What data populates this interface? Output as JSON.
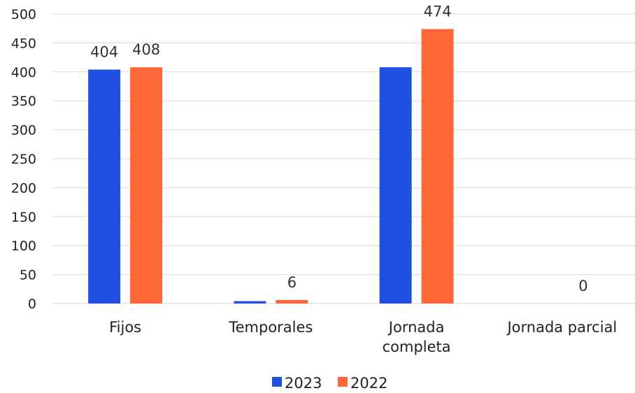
{
  "chart_data": {
    "type": "bar",
    "categories": [
      [
        "Fijos"
      ],
      [
        "Temporales"
      ],
      [
        "Jornada",
        "completa"
      ],
      [
        "Jornada parcial"
      ]
    ],
    "series": [
      {
        "name": "2023",
        "color": "#1f4ee0",
        "values": [
          404,
          4,
          408,
          0
        ],
        "labels": [
          "404",
          "",
          "",
          ""
        ]
      },
      {
        "name": "2022",
        "color": "#ff6638",
        "values": [
          408,
          6,
          474,
          0
        ],
        "labels": [
          "408",
          "6",
          "474",
          "0"
        ]
      }
    ],
    "ylim": [
      0,
      500
    ],
    "yticks": [
      0,
      50,
      100,
      150,
      200,
      250,
      300,
      350,
      400,
      450,
      500
    ],
    "grid": true,
    "legend": "bottom"
  }
}
